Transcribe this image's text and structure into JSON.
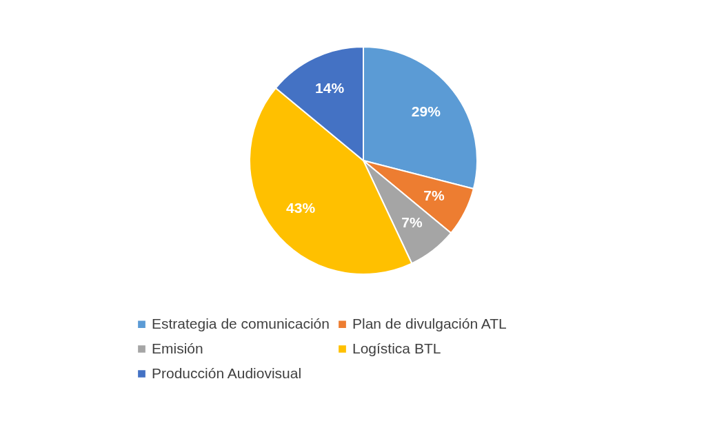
{
  "chart_data": {
    "type": "pie",
    "categories": [
      "Estrategia de comunicación",
      "Plan de divulgación ATL",
      "Emisión",
      "Logística BTL",
      "Producción Audiovisual"
    ],
    "values": [
      29,
      7,
      7,
      43,
      14
    ],
    "colors": [
      "#5b9bd5",
      "#ed7d31",
      "#a5a5a5",
      "#ffc000",
      "#4472c4"
    ],
    "value_labels": [
      "29%",
      "7%",
      "7%",
      "43%",
      "14%"
    ],
    "legend": "bottom"
  }
}
